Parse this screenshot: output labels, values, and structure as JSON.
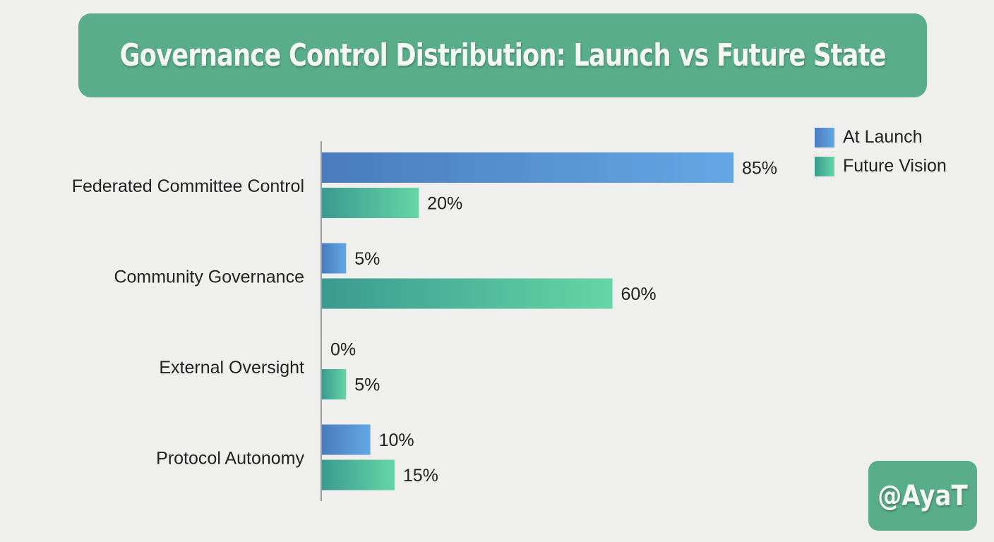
{
  "title": "Governance Control Distribution: Launch vs Future State",
  "watermark": "@AyaT",
  "colors": {
    "launch_start": "#4a7bbd",
    "launch_end": "#64a7e6",
    "future_start": "#3b9a8f",
    "future_end": "#66d5a6"
  },
  "chart_data": {
    "type": "bar",
    "orientation": "horizontal",
    "categories": [
      "Federated Committee Control",
      "Community Governance",
      "External Oversight",
      "Protocol Autonomy"
    ],
    "series": [
      {
        "name": "At Launch",
        "values": [
          85,
          5,
          0,
          10
        ],
        "labels": [
          "85%",
          "5%",
          "0%",
          "10%"
        ]
      },
      {
        "name": "Future Vision",
        "values": [
          20,
          60,
          5,
          15
        ],
        "labels": [
          "20%",
          "60%",
          "5%",
          "15%"
        ]
      }
    ],
    "unit": "%",
    "xlim": [
      0,
      100
    ],
    "grid": false,
    "legend_position": "top-right"
  }
}
